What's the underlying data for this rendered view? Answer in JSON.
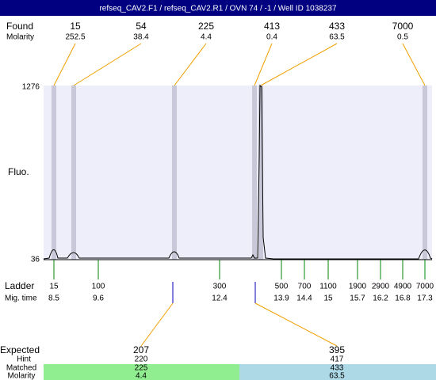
{
  "title": "refseq_CAV2.F1 / refseq_CAV2.R1 / OVN 74 / -1 / Well ID 1038237",
  "found": {
    "label": "Found",
    "sublabel": "Molarity",
    "peaks": [
      {
        "size": "15",
        "molarity": "252.5"
      },
      {
        "size": "54",
        "molarity": "38.4"
      },
      {
        "size": "225",
        "molarity": "4.4"
      },
      {
        "size": "413",
        "molarity": "0.4"
      },
      {
        "size": "433",
        "molarity": "63.5"
      },
      {
        "size": "7000",
        "molarity": "0.5"
      }
    ]
  },
  "y_axis": {
    "label": "Fluo.",
    "max": "1276",
    "min": "36"
  },
  "ladder": {
    "label": "Ladder",
    "sublabel": "Mig. time",
    "items": [
      {
        "size": "15",
        "time": "8.5"
      },
      {
        "size": "100",
        "time": "9.6"
      },
      {
        "size": "300",
        "time": "12.4"
      },
      {
        "size": "500",
        "time": "13.9"
      },
      {
        "size": "700",
        "time": "14.4"
      },
      {
        "size": "1100",
        "time": "15"
      },
      {
        "size": "1900",
        "time": "15.7"
      },
      {
        "size": "2900",
        "time": "16.2"
      },
      {
        "size": "4900",
        "time": "16.8"
      },
      {
        "size": "7000",
        "time": "17.3"
      }
    ]
  },
  "expected": {
    "label": "Expected",
    "hint_label": "Hint",
    "matched_label": "Matched",
    "molarity_label": "Molarity",
    "items": [
      {
        "expected": "207",
        "hint": "220",
        "matched": "225",
        "molarity": "4.4"
      },
      {
        "expected": "395",
        "hint": "417",
        "matched": "433",
        "molarity": "63.5"
      }
    ]
  }
}
